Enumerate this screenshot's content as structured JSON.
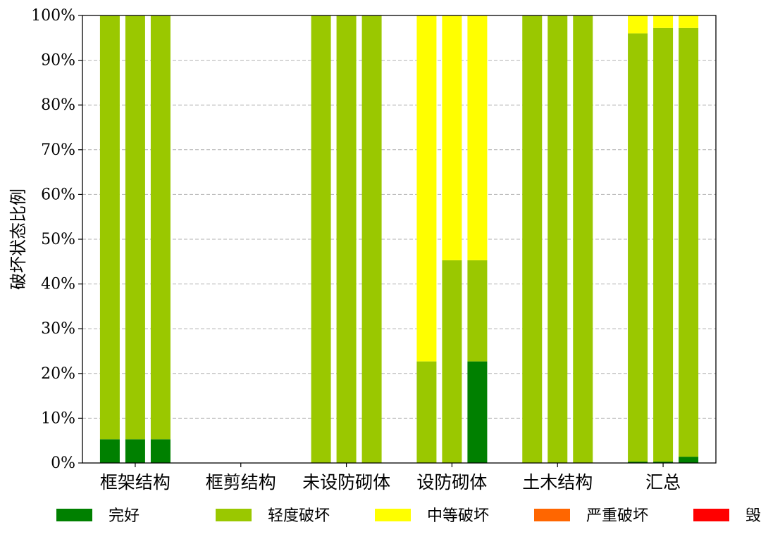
{
  "chart_data": {
    "type": "bar",
    "stacked": true,
    "percent_axis": true,
    "ylabel": "破坏状态比例",
    "ylim": [
      0,
      100
    ],
    "yticks": [
      "0%",
      "10%",
      "20%",
      "30%",
      "40%",
      "50%",
      "60%",
      "70%",
      "80%",
      "90%",
      "100%"
    ],
    "grid": "y-dashed",
    "legend_position": "bottom",
    "bars_per_category": 3,
    "categories": [
      "框架结构",
      "框剪结构",
      "未设防砌体",
      "设防砌体",
      "土木结构",
      "汇总"
    ],
    "series": [
      {
        "name": "完好",
        "color": "#008000",
        "values": [
          [
            5.3,
            5.3,
            5.3
          ],
          [
            0,
            0,
            0
          ],
          [
            0,
            0,
            0
          ],
          [
            0,
            0,
            22.7
          ],
          [
            0,
            0,
            0
          ],
          [
            0.3,
            0.3,
            1.4
          ]
        ]
      },
      {
        "name": "轻度破坏",
        "color": "#9AC800",
        "values": [
          [
            94.7,
            94.7,
            94.7
          ],
          [
            0,
            0,
            0
          ],
          [
            100,
            100,
            100
          ],
          [
            22.7,
            45.3,
            22.6
          ],
          [
            100,
            100,
            100
          ],
          [
            95.7,
            96.9,
            95.8
          ]
        ]
      },
      {
        "name": "中等破坏",
        "color": "#FFFF00",
        "values": [
          [
            0,
            0,
            0
          ],
          [
            0,
            0,
            0
          ],
          [
            0,
            0,
            0
          ],
          [
            77.3,
            54.7,
            54.7
          ],
          [
            0,
            0,
            0
          ],
          [
            4.0,
            2.8,
            2.8
          ]
        ]
      },
      {
        "name": "严重破坏",
        "color": "#FF6600",
        "values": [
          [
            0,
            0,
            0
          ],
          [
            0,
            0,
            0
          ],
          [
            0,
            0,
            0
          ],
          [
            0,
            0,
            0
          ],
          [
            0,
            0,
            0
          ],
          [
            0,
            0,
            0
          ]
        ]
      },
      {
        "name": "毁坏",
        "color": "#FF0000",
        "values": [
          [
            0,
            0,
            0
          ],
          [
            0,
            0,
            0
          ],
          [
            0,
            0,
            0
          ],
          [
            0,
            0,
            0
          ],
          [
            0,
            0,
            0
          ],
          [
            0,
            0,
            0
          ]
        ]
      }
    ]
  }
}
